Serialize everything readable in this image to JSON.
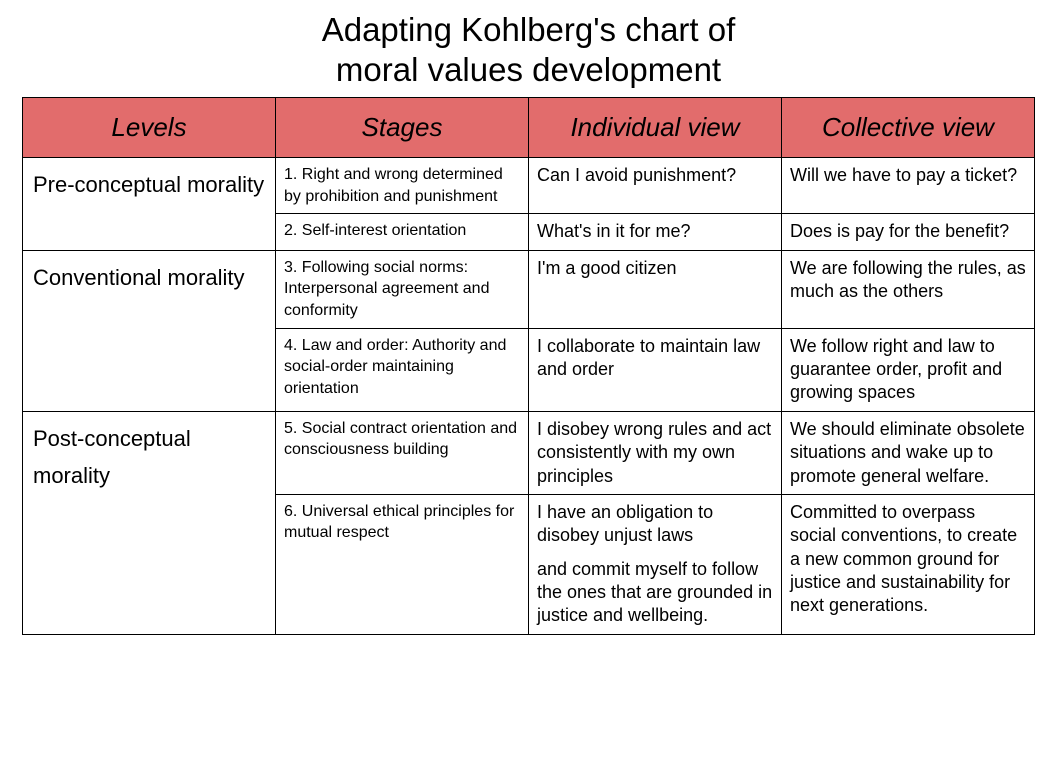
{
  "title_line1": "Adapting Kohlberg's chart of",
  "title_line2": "moral values development",
  "table": {
    "header_bg": "#e26c6c",
    "header_text_color": "#000000",
    "border_color": "#000000",
    "columns": [
      "Levels",
      "Stages",
      "Individual view",
      "Collective view"
    ],
    "column_widths_pct": [
      25,
      25,
      25,
      25
    ],
    "title_fontsize": 33,
    "header_fontsize": 26,
    "level_fontsize": 22,
    "stage_fontsize": 16,
    "view_fontsize": 18,
    "levels": [
      {
        "label": "Pre-conceptual morality",
        "rows": [
          {
            "stage": "1. Right and wrong determined by prohibition and punishment",
            "individual": "Can I avoid punishment?",
            "collective": "Will we have to pay a ticket?"
          },
          {
            "stage": "2. Self-interest orientation",
            "individual": "What's in it for me?",
            "collective": "Does is pay for the benefit?"
          }
        ]
      },
      {
        "label": "Conventional morality",
        "rows": [
          {
            "stage": "3. Following social norms: Interpersonal agreement and conformity",
            "individual": "I'm a good citizen",
            "collective": "We are following the rules, as much as the others"
          },
          {
            "stage": "4. Law and order:  Authority and social-order maintaining orientation",
            "individual": "I collaborate to maintain law and order",
            "collective": "We follow right and law to guarantee order, profit and growing spaces"
          }
        ]
      },
      {
        "label": "Post-conceptual morality",
        "rows": [
          {
            "stage": "5. Social contract orientation and consciousness building",
            "individual": "I disobey wrong rules and act consistently with my own principles",
            "collective": "We should eliminate obsolete  situations and wake up to promote general welfare."
          },
          {
            "stage": "6. Universal ethical principles for mutual respect",
            "individual_p1": "I have an obligation to disobey unjust laws",
            "individual_p2": "and commit myself to follow the ones that are grounded in justice and wellbeing.",
            "collective": "Committed to overpass social conventions, to create a new common ground for justice and sustainability for next generations."
          }
        ]
      }
    ]
  }
}
